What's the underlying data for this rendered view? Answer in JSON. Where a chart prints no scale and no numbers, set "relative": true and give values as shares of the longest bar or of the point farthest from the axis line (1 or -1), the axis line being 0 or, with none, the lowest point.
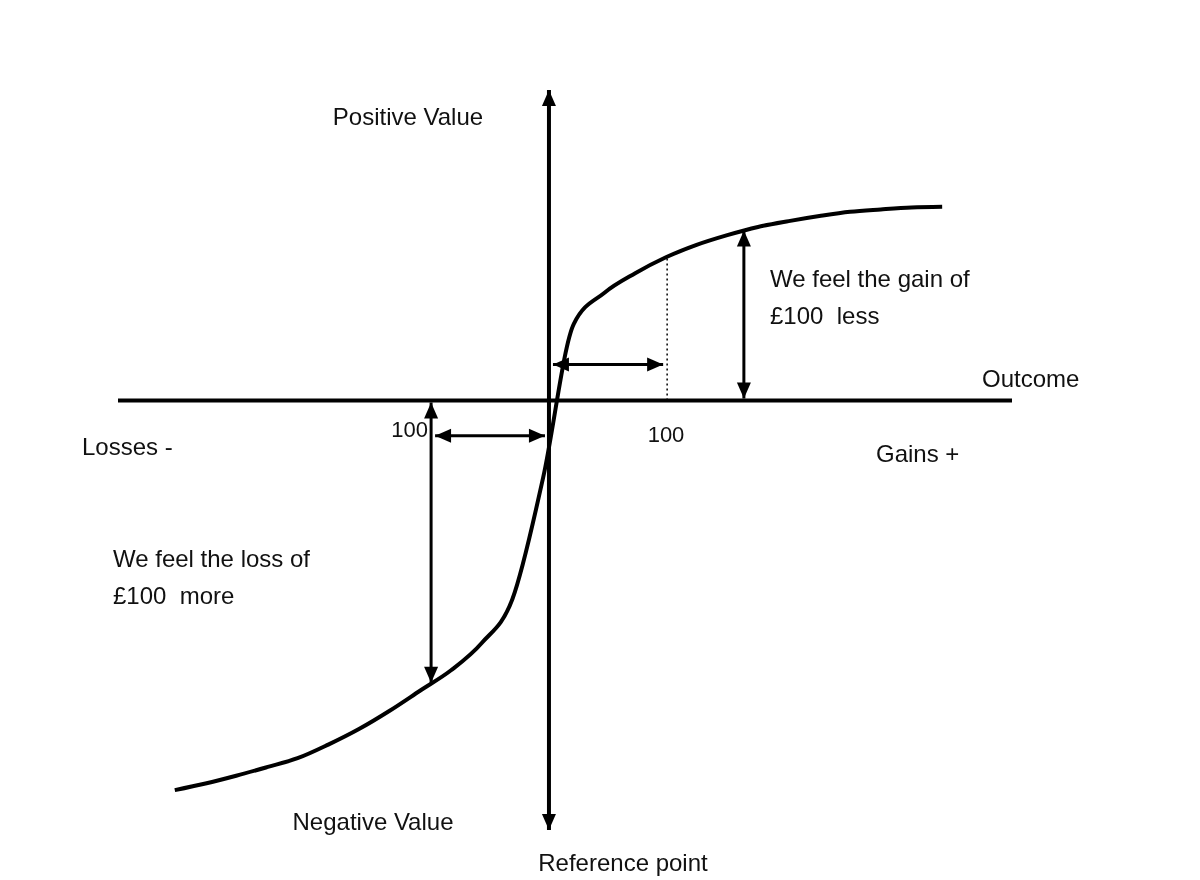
{
  "chart_data": {
    "type": "line",
    "relative": true,
    "color": "#000000",
    "xlabel": "Outcome",
    "ylabel": "Positive Value",
    "categories": [
      null,
      null,
      null,
      null,
      null,
      null,
      null,
      null,
      null,
      null,
      null,
      null,
      null,
      null,
      null,
      null,
      null,
      null,
      null,
      null,
      null,
      null,
      null,
      null,
      null,
      null
    ],
    "values": [
      -1,
      -0.983,
      -0.963,
      -0.941,
      -0.918,
      -0.883,
      -0.843,
      -0.796,
      -0.744,
      -0.692,
      -0.622,
      -0.509,
      -0.197,
      0.198,
      0.278,
      0.328,
      0.369,
      0.401,
      0.426,
      0.447,
      0.462,
      0.475,
      0.486,
      0.492,
      0.497,
      0.499
    ],
    "annotations": [
      "Negative Value",
      "Reference point",
      "Losses -",
      "Gains +",
      "We feel the gain of £100  less",
      "We feel the loss of £100  more",
      "100",
      "100"
    ]
  }
}
